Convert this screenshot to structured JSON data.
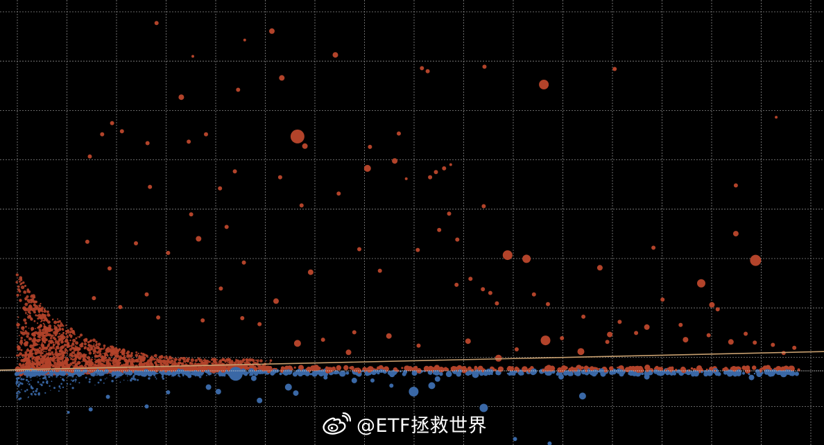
{
  "chart_data": {
    "type": "scatter",
    "title": "",
    "xlabel": "",
    "ylabel": "",
    "grid": true,
    "xlim": [
      0,
      100
    ],
    "ylim": [
      -10,
      50
    ],
    "colors": {
      "background": "#000000",
      "grid": "#8a8a8a",
      "baseline": "#d8d8d8",
      "positive": "#b2432a",
      "negative": "#3a68a6",
      "trend": "#c8a070"
    },
    "trend_line": {
      "x": [
        0,
        100
      ],
      "y": [
        0.1,
        2.6
      ]
    },
    "series": [
      {
        "color": "positive",
        "points": [
          [
            19,
            46.9,
            3
          ],
          [
            33,
            45.8,
            4
          ],
          [
            29.7,
            44.6,
            2
          ],
          [
            40.7,
            42.6,
            4
          ],
          [
            23.4,
            42.4,
            2
          ],
          [
            51.2,
            40.8,
            3
          ],
          [
            51.9,
            40.4,
            3
          ],
          [
            58.8,
            41.0,
            3
          ],
          [
            74.6,
            40.7,
            3
          ],
          [
            66,
            38.6,
            7
          ],
          [
            34.2,
            39.5,
            4
          ],
          [
            28.9,
            37.9,
            3
          ],
          [
            22,
            36.9,
            4
          ],
          [
            94.2,
            34.2,
            2
          ],
          [
            13.6,
            33.4,
            3
          ],
          [
            12.4,
            31.9,
            3
          ],
          [
            14.8,
            32.3,
            3
          ],
          [
            25,
            31.9,
            3
          ],
          [
            48.4,
            32.0,
            3
          ],
          [
            36.1,
            31.6,
            10
          ],
          [
            37,
            30.3,
            4
          ],
          [
            17.9,
            30.7,
            3
          ],
          [
            22.9,
            30.9,
            3
          ],
          [
            44.9,
            30.2,
            3
          ],
          [
            10.9,
            28.9,
            3
          ],
          [
            54.7,
            27.8,
            2
          ],
          [
            47.9,
            28.3,
            4
          ],
          [
            44.6,
            27.3,
            5
          ],
          [
            53.9,
            27.3,
            3
          ],
          [
            52.2,
            26.1,
            3
          ],
          [
            52.9,
            26.8,
            3
          ],
          [
            28.5,
            26.9,
            3
          ],
          [
            49.3,
            25.9,
            2
          ],
          [
            89.3,
            25.0,
            3
          ],
          [
            34,
            26.1,
            3
          ],
          [
            26.7,
            24.6,
            3
          ],
          [
            41.1,
            23.9,
            3
          ],
          [
            58.7,
            22.2,
            3
          ],
          [
            54.5,
            21.2,
            3
          ],
          [
            36.6,
            22.3,
            3
          ],
          [
            27.5,
            19.4,
            3
          ],
          [
            53.3,
            19.0,
            3
          ],
          [
            89.3,
            18.5,
            4
          ],
          [
            55.5,
            17.7,
            3
          ],
          [
            79.3,
            16.6,
            3
          ],
          [
            61.6,
            15.6,
            7
          ],
          [
            63.9,
            15.1,
            6
          ],
          [
            91.7,
            14.9,
            8
          ],
          [
            43.6,
            16.4,
            3
          ],
          [
            72.8,
            13.9,
            4
          ],
          [
            46.1,
            13.5,
            3
          ],
          [
            85.1,
            11.8,
            6
          ],
          [
            80.4,
            9.6,
            3
          ],
          [
            86.4,
            8.9,
            4
          ],
          [
            87.1,
            8.3,
            3
          ],
          [
            57.1,
            12.4,
            3
          ],
          [
            55.4,
            11.6,
            3
          ],
          [
            58.6,
            11.0,
            3
          ],
          [
            59.5,
            10.5,
            3
          ],
          [
            64.8,
            10.3,
            3
          ],
          [
            60.3,
            9.1,
            3
          ],
          [
            66.5,
            9.0,
            3
          ],
          [
            70.8,
            7.3,
            3
          ],
          [
            75.2,
            6.6,
            3
          ],
          [
            78.5,
            5.9,
            4
          ],
          [
            82.6,
            6.2,
            3
          ],
          [
            77.2,
            5.1,
            3
          ],
          [
            86,
            4.8,
            3
          ],
          [
            91.6,
            3.8,
            3
          ],
          [
            95.1,
            2.4,
            3
          ],
          [
            96.4,
            3.1,
            3
          ],
          [
            93.8,
            3.5,
            3
          ],
          [
            90.5,
            5.0,
            3
          ],
          [
            73.7,
            3.9,
            3
          ],
          [
            68.2,
            4.4,
            3
          ],
          [
            62.7,
            2.9,
            3
          ],
          [
            56.8,
            4.0,
            4
          ],
          [
            50.8,
            3.4,
            3
          ],
          [
            47.2,
            4.7,
            4
          ],
          [
            43,
            5.2,
            3
          ],
          [
            39.2,
            4.2,
            3
          ],
          [
            36.1,
            3.7,
            5
          ],
          [
            31.5,
            6.3,
            3
          ],
          [
            29.4,
            7.1,
            3
          ],
          [
            24.6,
            6.8,
            3
          ],
          [
            17.8,
            10.3,
            3
          ],
          [
            11.4,
            9.8,
            3
          ],
          [
            14.6,
            8.6,
            3
          ],
          [
            19.2,
            7.2,
            3
          ],
          [
            26.8,
            11.1,
            3
          ],
          [
            33.5,
            9.4,
            4
          ],
          [
            37.7,
            13.3,
            4
          ],
          [
            50.7,
            16.3,
            3
          ],
          [
            66.2,
            4.1,
            7
          ],
          [
            74,
            4.9,
            4
          ],
          [
            83.2,
            4.2,
            4
          ],
          [
            88.7,
            3.9,
            4
          ],
          [
            70.5,
            2.6,
            5
          ],
          [
            60.5,
            1.7,
            5
          ],
          [
            42.3,
            2.5,
            4
          ],
          [
            29.6,
            14.6,
            3
          ],
          [
            24.1,
            17.8,
            4
          ],
          [
            20.4,
            15.9,
            3
          ],
          [
            16.5,
            17.2,
            3
          ],
          [
            13.3,
            13.8,
            3
          ],
          [
            23.2,
            21.1,
            3
          ],
          [
            18.2,
            24.8,
            3
          ],
          [
            10.6,
            17.4,
            3
          ]
        ]
      },
      {
        "color": "negative",
        "points": [
          [
            28.6,
            -0.4,
            10
          ],
          [
            18.2,
            -0.4,
            4
          ],
          [
            12.3,
            -0.3,
            4
          ],
          [
            25.3,
            -2.2,
            4
          ],
          [
            26.5,
            -2.8,
            4
          ],
          [
            35,
            -2.2,
            5
          ],
          [
            30.8,
            -1.0,
            4
          ],
          [
            31.5,
            -4.0,
            4
          ],
          [
            35.9,
            -3.0,
            4
          ],
          [
            40.8,
            -0.2,
            3
          ],
          [
            50.2,
            -2.8,
            7
          ],
          [
            52.4,
            -2.0,
            5
          ],
          [
            53.1,
            -1.1,
            4
          ],
          [
            43,
            -1.3,
            4
          ],
          [
            58.7,
            -5.0,
            6
          ],
          [
            57.7,
            -0.5,
            5
          ],
          [
            76.6,
            -0.3,
            4
          ],
          [
            70.7,
            -3.4,
            5
          ],
          [
            78.5,
            -0.8,
            4
          ],
          [
            88.6,
            -0.3,
            5
          ],
          [
            95.1,
            -0.4,
            5
          ],
          [
            62.5,
            -9.2,
            3
          ],
          [
            66.7,
            -9.8,
            3
          ],
          [
            20.4,
            -2.9,
            3
          ],
          [
            17.8,
            -4.8,
            3
          ],
          [
            13.1,
            -3.5,
            3
          ],
          [
            11,
            -5.2,
            3
          ],
          [
            8.3,
            -5.6,
            2
          ],
          [
            47.5,
            -2.0,
            3
          ],
          [
            68.1,
            -0.8,
            4
          ],
          [
            72.1,
            -0.4,
            4
          ],
          [
            84.1,
            -0.5,
            3
          ],
          [
            91.2,
            -0.9,
            4
          ],
          [
            39.5,
            -0.9,
            3
          ],
          [
            33.3,
            -0.1,
            3
          ],
          [
            23,
            -0.7,
            3
          ],
          [
            45.2,
            -1.3,
            3
          ]
        ]
      }
    ]
  },
  "watermark": {
    "logo_icon": "weibo-icon",
    "text": "@ETF拯救世界"
  }
}
